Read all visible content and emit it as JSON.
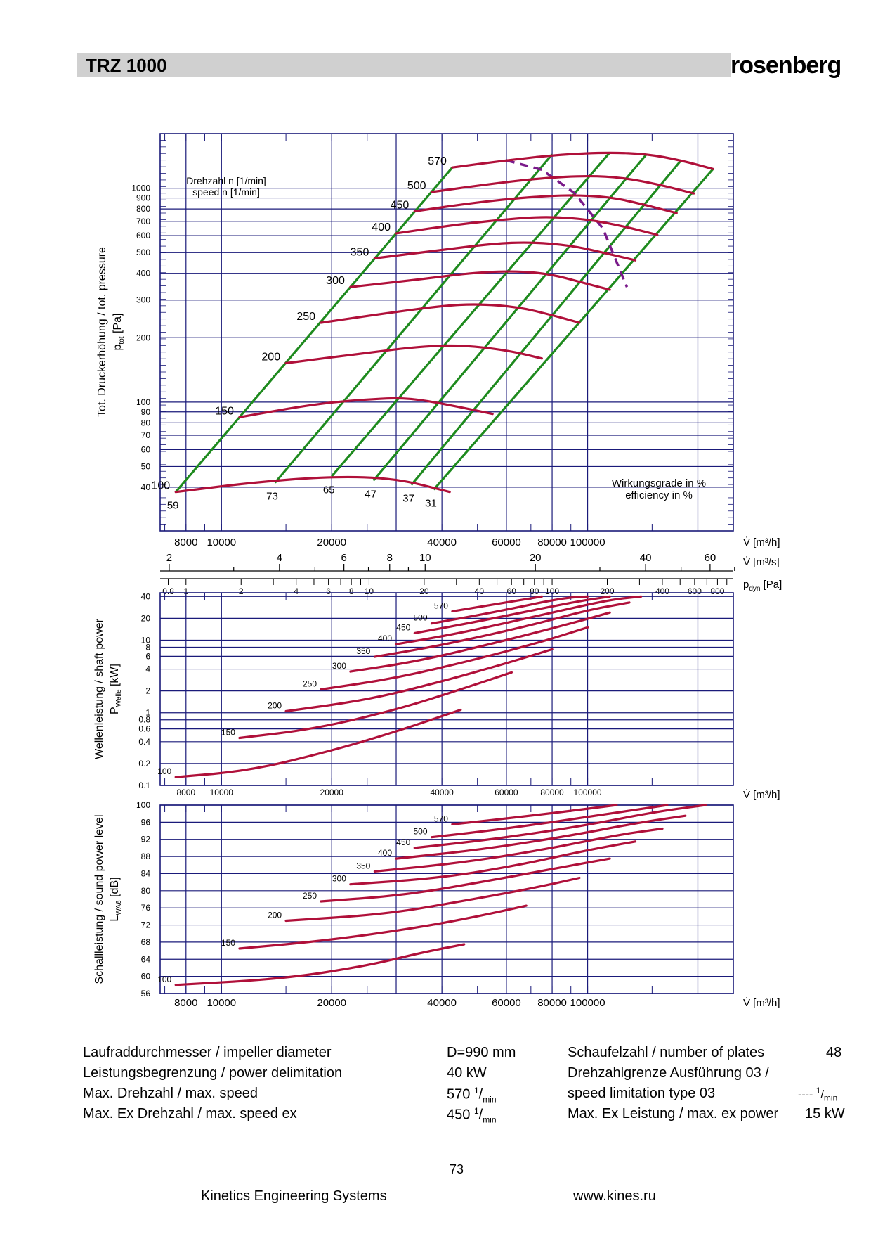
{
  "header": {
    "title": "TRZ 1000",
    "brand": "rosenberg"
  },
  "chart_data": [
    {
      "type": "line",
      "ylabel": "Tot. Druckerhöhung / tot. pressure",
      "ylabel_symbol": "p",
      "ylabel_sub": "tot",
      "ylabel_unit": "[Pa]",
      "annotation_speed_de": "Drehzahl n [",
      "annotation_speed_de_unit": "1/min]",
      "annotation_speed_en": "speed n [",
      "annotation_speed_en_unit": "1/min]",
      "annotation_eff_de": "Wirkungsgrade in %",
      "annotation_eff_en": "efficiency in %",
      "y_ticks": [
        "1000",
        "900",
        "800",
        "700",
        "600",
        "500",
        "400",
        "300",
        "200",
        "100",
        "90",
        "80",
        "70",
        "60",
        "50",
        "40"
      ],
      "x_ticks": [
        "8000",
        "10000",
        "20000",
        "40000",
        "60000",
        "80000",
        "100000"
      ],
      "x_unit": "V̇ [m³/h]",
      "x2_ticks": [
        "2",
        "4",
        "6",
        "8",
        "10",
        "20",
        "40",
        "60"
      ],
      "x2_unit": "V̇ [m³/s]",
      "x3_ticks": [
        "0.8",
        "1",
        "2",
        "4",
        "6",
        "8",
        "10",
        "20",
        "40",
        "60",
        "80",
        "100",
        "200",
        "400",
        "600",
        "800"
      ],
      "x3_unit_symbol": "p",
      "x3_unit_sub": "dyn",
      "x3_unit_tail": "[Pa]",
      "series": [
        {
          "name": "100",
          "points": [
            [
              7500,
              38
            ],
            [
              12000,
              42
            ],
            [
              20000,
              45
            ],
            [
              30000,
              44
            ],
            [
              42000,
              38
            ]
          ]
        },
        {
          "name": "150",
          "points": [
            [
              11200,
              85
            ],
            [
              18000,
              98
            ],
            [
              25000,
              103
            ],
            [
              32000,
              105
            ],
            [
              42000,
              97
            ],
            [
              55000,
              88
            ]
          ]
        },
        {
          "name": "200",
          "points": [
            [
              15000,
              152
            ],
            [
              25000,
              170
            ],
            [
              35000,
              182
            ],
            [
              45000,
              185
            ],
            [
              60000,
              175
            ],
            [
              75000,
              160
            ]
          ]
        },
        {
          "name": "250",
          "points": [
            [
              18700,
              235
            ],
            [
              28000,
              260
            ],
            [
              40000,
              282
            ],
            [
              50000,
              288
            ],
            [
              65000,
              278
            ],
            [
              80000,
              255
            ],
            [
              95000,
              235
            ]
          ]
        },
        {
          "name": "300",
          "points": [
            [
              22500,
              345
            ],
            [
              35000,
              375
            ],
            [
              50000,
              405
            ],
            [
              65000,
              410
            ],
            [
              80000,
              395
            ],
            [
              95000,
              365
            ],
            [
              115000,
              335
            ]
          ]
        },
        {
          "name": "350",
          "points": [
            [
              26200,
              470
            ],
            [
              40000,
              515
            ],
            [
              55000,
              550
            ],
            [
              70000,
              560
            ],
            [
              90000,
              540
            ],
            [
              110000,
              500
            ],
            [
              135000,
              460
            ]
          ]
        },
        {
          "name": "400",
          "points": [
            [
              30000,
              615
            ],
            [
              45000,
              680
            ],
            [
              65000,
              725
            ],
            [
              80000,
              735
            ],
            [
              100000,
              715
            ],
            [
              125000,
              665
            ],
            [
              155000,
              605
            ]
          ]
        },
        {
          "name": "450",
          "points": [
            [
              33700,
              780
            ],
            [
              50000,
              860
            ],
            [
              70000,
              910
            ],
            [
              90000,
              930
            ],
            [
              115000,
              910
            ],
            [
              140000,
              845
            ],
            [
              175000,
              765
            ]
          ]
        },
        {
          "name": "500",
          "points": [
            [
              37500,
              960
            ],
            [
              55000,
              1050
            ],
            [
              75000,
              1115
            ],
            [
              100000,
              1145
            ],
            [
              125000,
              1120
            ],
            [
              155000,
              1045
            ],
            [
              195000,
              945
            ]
          ]
        },
        {
          "name": "570",
          "points": [
            [
              42700,
              1250
            ],
            [
              60000,
              1350
            ],
            [
              85000,
              1440
            ],
            [
              115000,
              1470
            ],
            [
              145000,
              1445
            ],
            [
              180000,
              1350
            ],
            [
              220000,
              1230
            ]
          ]
        }
      ],
      "efficiency_lines": [
        {
          "label": "59",
          "points": [
            [
              7500,
              38
            ],
            [
              42700,
              1250
            ]
          ]
        },
        {
          "label": "73",
          "points": [
            [
              14000,
              42
            ],
            [
              80000,
              1440
            ]
          ]
        },
        {
          "label": "65",
          "points": [
            [
              20000,
              45
            ],
            [
              115000,
              1470
            ]
          ]
        },
        {
          "label": "47",
          "points": [
            [
              26000,
              43
            ],
            [
              145000,
              1445
            ]
          ]
        },
        {
          "label": "37",
          "points": [
            [
              33000,
              41
            ],
            [
              180000,
              1350
            ]
          ]
        },
        {
          "label": "31",
          "points": [
            [
              38000,
              39
            ],
            [
              220000,
              1230
            ]
          ]
        }
      ],
      "limit_line": [
        [
          60000,
          1350
        ],
        [
          75000,
          1220
        ],
        [
          92000,
          950
        ],
        [
          110000,
          650
        ],
        [
          128000,
          345
        ]
      ]
    },
    {
      "type": "line",
      "ylabel": "Wellenleistung / shaft power",
      "ylabel_symbol": "P",
      "ylabel_sub": "Welle",
      "ylabel_unit": "[kW]",
      "y_ticks": [
        "40",
        "20",
        "10",
        "8",
        "6",
        "4",
        "2",
        "1",
        "0.8",
        "0.6",
        "0.4",
        "0.2",
        "0.1"
      ],
      "x_ticks": [
        "8000",
        "10000",
        "20000",
        "40000",
        "60000",
        "80000",
        "100000"
      ],
      "x_unit": "V̇ [m³/h]",
      "series": [
        {
          "name": "100",
          "points": [
            [
              7500,
              0.13
            ],
            [
              12000,
              0.16
            ],
            [
              20000,
              0.3
            ],
            [
              30000,
              0.55
            ],
            [
              45000,
              1.1
            ]
          ]
        },
        {
          "name": "150",
          "points": [
            [
              11200,
              0.45
            ],
            [
              18000,
              0.6
            ],
            [
              30000,
              1.1
            ],
            [
              45000,
              2.1
            ],
            [
              62000,
              3.6
            ]
          ]
        },
        {
          "name": "200",
          "points": [
            [
              15000,
              1.05
            ],
            [
              25000,
              1.5
            ],
            [
              40000,
              2.7
            ],
            [
              60000,
              4.8
            ],
            [
              80000,
              7.5
            ]
          ]
        },
        {
          "name": "250",
          "points": [
            [
              18700,
              2.1
            ],
            [
              30000,
              3.0
            ],
            [
              50000,
              5.5
            ],
            [
              75000,
              9.5
            ],
            [
              100000,
              15
            ]
          ]
        },
        {
          "name": "300",
          "points": [
            [
              22500,
              3.7
            ],
            [
              35000,
              5.2
            ],
            [
              60000,
              10
            ],
            [
              90000,
              17
            ],
            [
              115000,
              24
            ]
          ]
        },
        {
          "name": "350",
          "points": [
            [
              26200,
              5.9
            ],
            [
              40000,
              8.5
            ],
            [
              70000,
              16
            ],
            [
              100000,
              26
            ],
            [
              130000,
              33
            ]
          ]
        },
        {
          "name": "400",
          "points": [
            [
              30000,
              8.8
            ],
            [
              45000,
              12.5
            ],
            [
              80000,
              24
            ],
            [
              115000,
              36
            ],
            [
              140000,
              40
            ]
          ]
        },
        {
          "name": "450",
          "points": [
            [
              33700,
              12.5
            ],
            [
              50000,
              18
            ],
            [
              90000,
              33
            ],
            [
              115000,
              40
            ]
          ]
        },
        {
          "name": "500",
          "points": [
            [
              37500,
              17
            ],
            [
              55000,
              24
            ],
            [
              85000,
              38
            ],
            [
              100000,
              40
            ]
          ]
        },
        {
          "name": "570",
          "points": [
            [
              42700,
              25
            ],
            [
              60000,
              33
            ],
            [
              75000,
              40
            ]
          ]
        }
      ]
    },
    {
      "type": "line",
      "ylabel": "Schallleistung / sound power level",
      "ylabel_symbol": "L",
      "ylabel_sub": "WA6",
      "ylabel_unit": "[dB]",
      "y_ticks": [
        "100",
        "96",
        "92",
        "88",
        "84",
        "80",
        "76",
        "72",
        "68",
        "64",
        "60",
        "56"
      ],
      "x_ticks": [
        "8000",
        "10000",
        "20000",
        "40000",
        "60000",
        "80000",
        "100000"
      ],
      "x_unit": "V̇ [m³/h]",
      "series": [
        {
          "name": "100",
          "points": [
            [
              7500,
              58
            ],
            [
              15000,
              59.5
            ],
            [
              25000,
              62.5
            ],
            [
              35000,
              65.5
            ],
            [
              46000,
              67.5
            ]
          ]
        },
        {
          "name": "150",
          "points": [
            [
              11200,
              66.5
            ],
            [
              20000,
              68.5
            ],
            [
              35000,
              71.5
            ],
            [
              50000,
              74
            ],
            [
              68000,
              76.5
            ]
          ]
        },
        {
          "name": "200",
          "points": [
            [
              15000,
              73
            ],
            [
              28000,
              74.5
            ],
            [
              45000,
              77.5
            ],
            [
              70000,
              80.5
            ],
            [
              95000,
              83
            ]
          ]
        },
        {
          "name": "250",
          "points": [
            [
              18700,
              77.5
            ],
            [
              32000,
              79
            ],
            [
              55000,
              82.5
            ],
            [
              85000,
              85.5
            ],
            [
              115000,
              87.5
            ]
          ]
        },
        {
          "name": "300",
          "points": [
            [
              22500,
              81.5
            ],
            [
              40000,
              83
            ],
            [
              65000,
              86
            ],
            [
              100000,
              89.5
            ],
            [
              135000,
              91.5
            ]
          ]
        },
        {
          "name": "350",
          "points": [
            [
              26200,
              84.5
            ],
            [
              45000,
              86.5
            ],
            [
              75000,
              89.5
            ],
            [
              120000,
              93
            ],
            [
              160000,
              94.5
            ]
          ]
        },
        {
          "name": "400",
          "points": [
            [
              30000,
              87.5
            ],
            [
              50000,
              89.5
            ],
            [
              85000,
              92.5
            ],
            [
              140000,
              96
            ],
            [
              185000,
              97.5
            ]
          ]
        },
        {
          "name": "450",
          "points": [
            [
              33700,
              90
            ],
            [
              55000,
              92
            ],
            [
              95000,
              95
            ],
            [
              155000,
              98.5
            ],
            [
              210000,
              100
            ]
          ]
        },
        {
          "name": "500",
          "points": [
            [
              37500,
              92.5
            ],
            [
              60000,
              94.5
            ],
            [
              105000,
              97.5
            ],
            [
              165000,
              100
            ]
          ]
        },
        {
          "name": "570",
          "points": [
            [
              42700,
              95.5
            ],
            [
              70000,
              97.5
            ],
            [
              120000,
              100
            ]
          ]
        }
      ]
    }
  ],
  "specs": [
    {
      "label": "Laufraddurchmesser / impeller diameter",
      "value": "D=990 mm"
    },
    {
      "label": "Leistungsbegrenzung / power delimitation",
      "value": "40 kW"
    },
    {
      "label": "Max. Drehzahl / max. speed",
      "value": "570",
      "unit": "1/min"
    },
    {
      "label": "Max. Ex Drehzahl / max. speed ex",
      "value": "450",
      "unit": "1/min"
    }
  ],
  "specs_right": [
    {
      "label": "Schaufelzahl / number of plates",
      "value": "48"
    },
    {
      "label": "Drehzahlgrenze Ausführung 03 /",
      "value": ""
    },
    {
      "label": "speed limitation type 03",
      "value": "----",
      "unit": "1/min"
    },
    {
      "label": "Max. Ex Leistung / max. ex power",
      "value": "15 kW"
    }
  ],
  "page_number": "73",
  "footer": {
    "company": "Kinetics Engineering Systems",
    "website": "www.kines.ru"
  },
  "colors": {
    "grid": "#1a1a7a",
    "curve": "#b0103a",
    "efficiency": "#1e8a1e",
    "limit": "#7a1a8a",
    "titlebar": "#d0d0d0"
  }
}
